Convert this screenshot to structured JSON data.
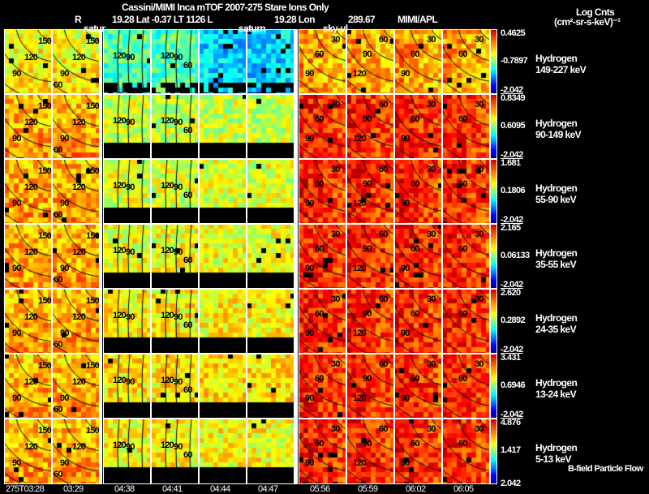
{
  "header": {
    "title": "Cassini/MIMI Inca mTOF  2007-275   Stare   Ions Only",
    "r_label": "R",
    "position_info": "19.28 Lat -0.37 LT 1126 L",
    "lon_info": "19.28 Lon",
    "lon_value": "289.67",
    "credit": "MIMI/APL",
    "units_title": "Log Cnts",
    "units": "(cm²-sr-s-keV)⁻¹"
  },
  "overlay_labels": [
    "satur",
    "saturn",
    "sky-vl"
  ],
  "footer": {
    "flow_label": "B-field Particle Flow"
  },
  "chart_data": {
    "type": "heatmap",
    "title": "Cassini/MIMI Inca mTOF 2007-275 Stare Ions Only",
    "columns": [
      "275T03:28",
      "03:29",
      "04:38",
      "04:41",
      "04:44",
      "04:47",
      "05:56",
      "05:59",
      "06:02",
      "06:05"
    ],
    "rows": [
      {
        "species": "Hydrogen",
        "energy": "149-227 keV",
        "max": "0.4625",
        "mid": "-0.7897",
        "min": "-2.042"
      },
      {
        "species": "Hydrogen",
        "energy": "90-149 keV",
        "max": "0.8349",
        "mid": "0.6095",
        "min": "-2.042"
      },
      {
        "species": "Hydrogen",
        "energy": "55-90 keV",
        "max": "1.681",
        "mid": "0.1806",
        "min": "-2.042"
      },
      {
        "species": "Hydrogen",
        "energy": "35-55 keV",
        "max": "2.165",
        "mid": "0.06133",
        "min": "-2.042"
      },
      {
        "species": "Hydrogen",
        "energy": "24-35 keV",
        "max": "2.620",
        "mid": "0.2892",
        "min": "-2.042"
      },
      {
        "species": "Hydrogen",
        "energy": "13-24 keV",
        "max": "3.431",
        "mid": "0.6946",
        "min": "-2.042"
      },
      {
        "species": "Hydrogen",
        "energy": "5-13 keV",
        "max": "4.876",
        "mid": "1.417",
        "min": "2.042"
      }
    ],
    "contour_labels": [
      [
        "150",
        "120",
        "90"
      ],
      [
        "150",
        "120",
        "90",
        "60"
      ],
      [
        "120",
        "90"
      ],
      [
        "120",
        "90",
        "60"
      ],
      [],
      [],
      [
        "30",
        "60",
        "90"
      ],
      [
        "60",
        "90",
        "120"
      ],
      [
        "30",
        "60",
        "90"
      ],
      [
        "30",
        "60"
      ]
    ],
    "colormap": "jet"
  }
}
